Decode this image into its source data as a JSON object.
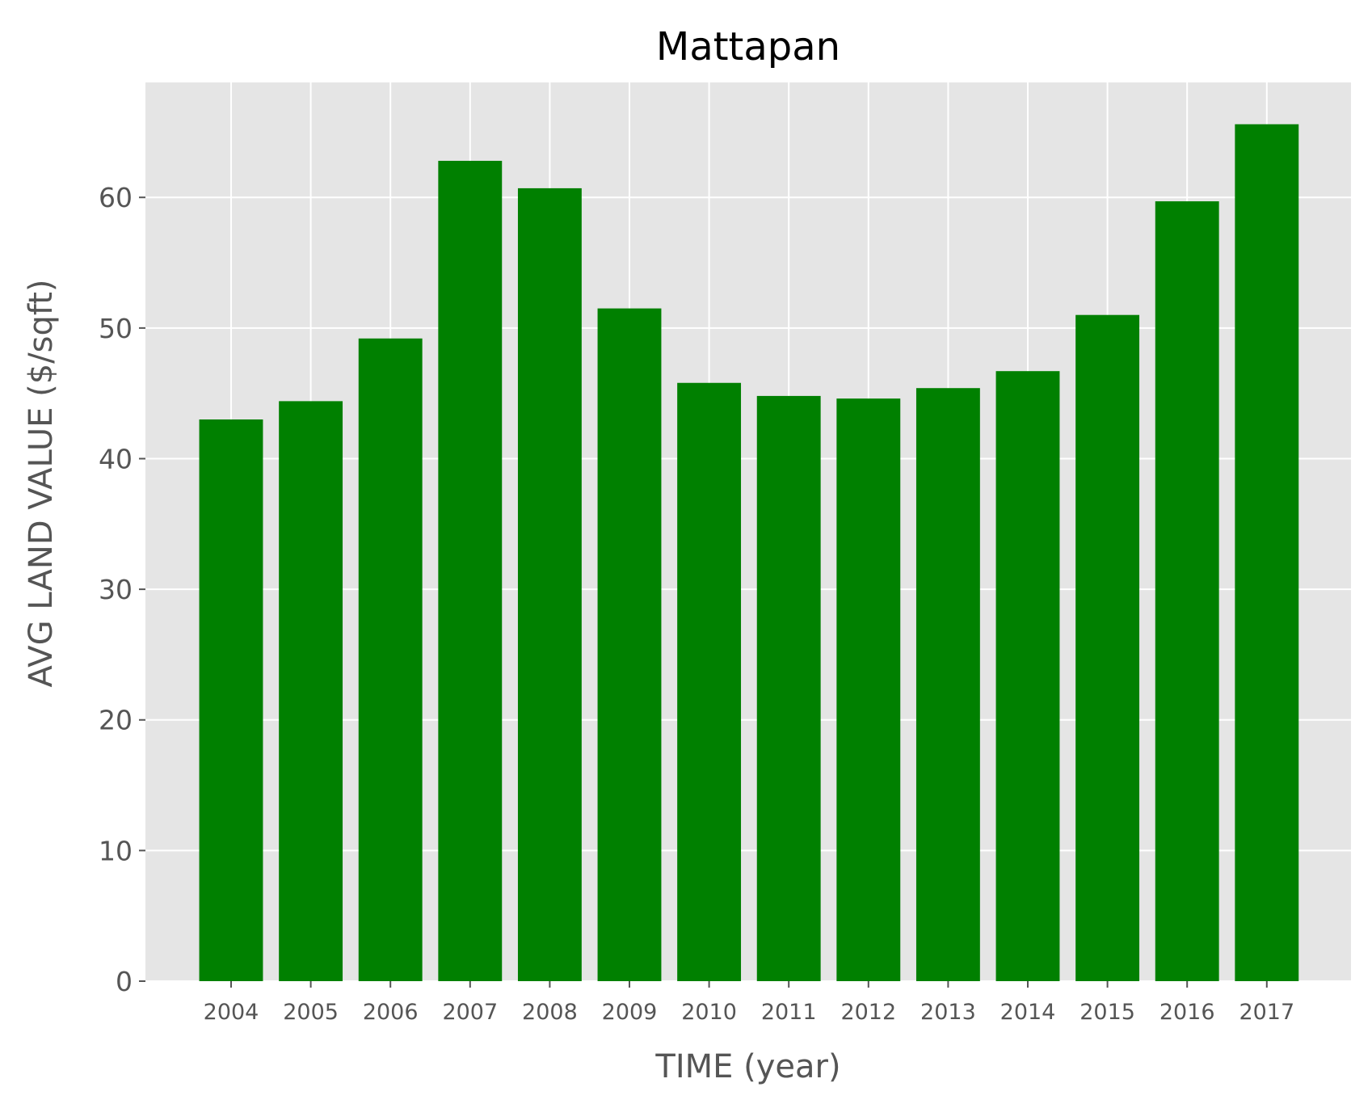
{
  "chart_data": {
    "type": "bar",
    "title": "Mattapan",
    "xlabel": "TIME (year)",
    "ylabel": "AVG LAND VALUE ($/sqft)",
    "categories": [
      "2004",
      "2005",
      "2006",
      "2007",
      "2008",
      "2009",
      "2010",
      "2011",
      "2012",
      "2013",
      "2014",
      "2015",
      "2016",
      "2017"
    ],
    "values": [
      43.0,
      44.4,
      49.2,
      62.8,
      60.7,
      51.5,
      45.8,
      44.8,
      44.6,
      45.4,
      46.7,
      51.0,
      59.7,
      65.6
    ],
    "ylim": [
      0,
      68.8
    ],
    "yticks": [
      0,
      10,
      20,
      30,
      40,
      50,
      60
    ],
    "grid": true,
    "colors": {
      "bar": "#008000",
      "plot_background": "#e5e5e5",
      "grid": "#ffffff"
    }
  }
}
